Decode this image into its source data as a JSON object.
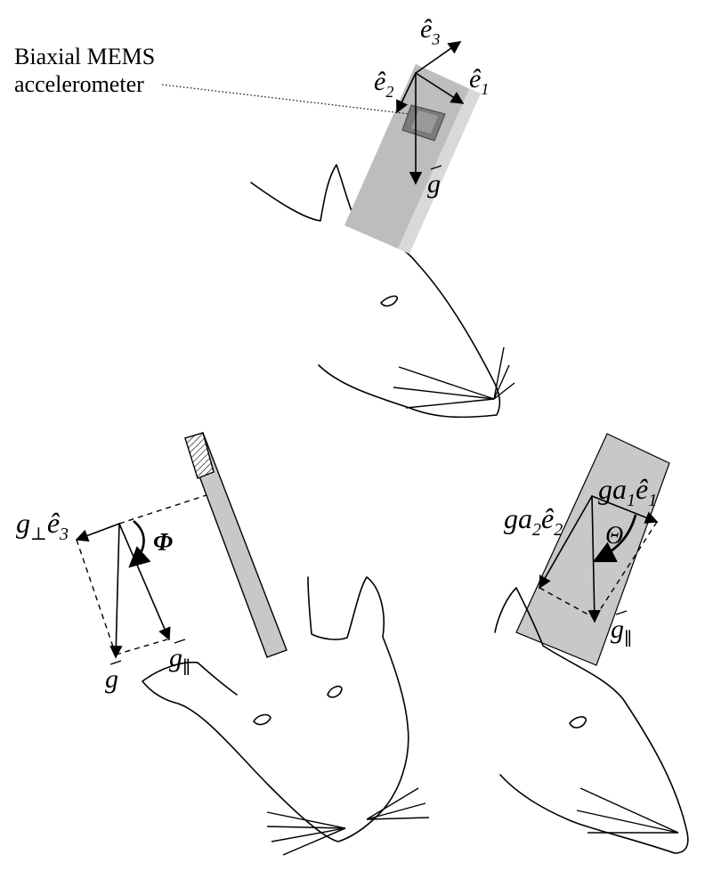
{
  "top_panel": {
    "callout_line1": "Biaxial MEMS",
    "callout_line2": "accelerometer",
    "axis_e3": "ê",
    "axis_e3_sub": "3",
    "axis_e2": "ê",
    "axis_e2_sub": "2",
    "axis_e1": "ê",
    "axis_e1_sub": "1",
    "gravity": "g"
  },
  "left_panel": {
    "g_perp": "g",
    "g_perp_sub": "⊥",
    "g_perp_axis": "ê",
    "g_perp_axis_sub": "3",
    "angle": "Φ",
    "gravity": "g",
    "g_parallel": "g",
    "g_parallel_sub": "∥"
  },
  "right_panel": {
    "ga2_prefix": "ga",
    "ga2_sub": "2",
    "ga2_axis": "ê",
    "ga2_axis_sub": "2",
    "ga1_prefix": "ga",
    "ga1_sub": "1",
    "ga1_axis": "ê",
    "ga1_axis_sub": "1",
    "angle": "Θ",
    "g_parallel": "g",
    "g_parallel_sub": "∥"
  },
  "colors": {
    "sensor_body": "#bdbdbd",
    "sensor_side": "#d9d9d9",
    "chip": "#7a7a7a",
    "probe_fill": "#c8c8c8"
  }
}
